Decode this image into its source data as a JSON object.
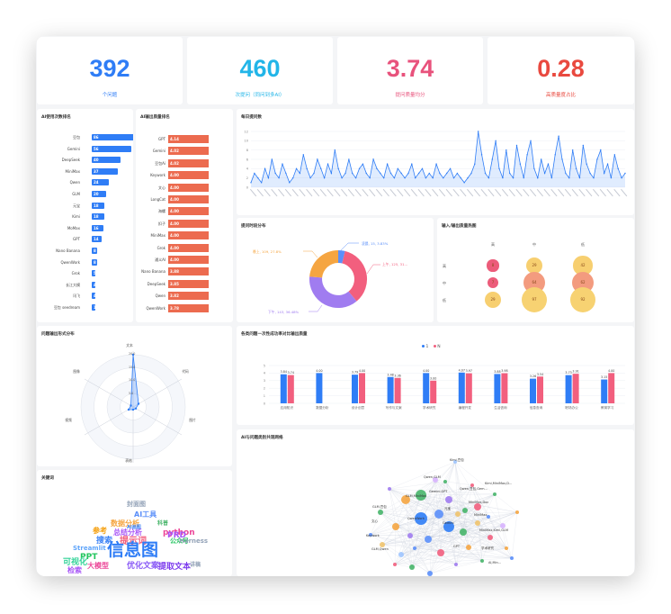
{
  "kpis": [
    {
      "value": "392",
      "label": "个问题",
      "color": "#2f7df6"
    },
    {
      "value": "460",
      "label": "次提问（同问到多AI）",
      "color": "#22b5e8"
    },
    {
      "value": "3.74",
      "label": "提问质量均分",
      "color": "#e8527c"
    },
    {
      "value": "0.28",
      "label": "高质量度占比",
      "color": "#e9493f"
    }
  ],
  "ai_usage": {
    "title": "AI使用次数排名",
    "items": [
      {
        "name": "豆包",
        "value": "86",
        "frac": 1.0
      },
      {
        "name": "Gemini",
        "value": "56",
        "frac": 0.65
      },
      {
        "name": "DeepSeek",
        "value": "40",
        "frac": 0.47
      },
      {
        "name": "MiniMax",
        "value": "37",
        "frac": 0.43
      },
      {
        "name": "Qwen",
        "value": "24",
        "frac": 0.28
      },
      {
        "name": "GLM",
        "value": "20",
        "frac": 0.23
      },
      {
        "name": "元宝",
        "value": "18",
        "frac": 0.21
      },
      {
        "name": "Kimi",
        "value": "18",
        "frac": 0.21
      },
      {
        "name": "MoMax",
        "value": "16",
        "frac": 0.19
      },
      {
        "name": "GPT",
        "value": "14",
        "frac": 0.16
      },
      {
        "name": "Nano Banana",
        "value": "8",
        "frac": 0.09
      },
      {
        "name": "QwenWork",
        "value": "8",
        "frac": 0.09
      },
      {
        "name": "Grok",
        "value": "5",
        "frac": 0.06
      },
      {
        "name": "长江大模",
        "value": "4",
        "frac": 0.05
      },
      {
        "name": "讯飞",
        "value": "4",
        "frac": 0.05
      },
      {
        "name": "豆包 seedream",
        "value": "1",
        "frac": 0.02
      }
    ]
  },
  "ai_quality": {
    "title": "AI输出质量排名",
    "items": [
      {
        "name": "GPT",
        "value": "4.14"
      },
      {
        "name": "Gemini",
        "value": "4.02"
      },
      {
        "name": "豆包Ai",
        "value": "4.02"
      },
      {
        "name": "Keywork",
        "value": "4.00"
      },
      {
        "name": "文心",
        "value": "4.00"
      },
      {
        "name": "LongCat",
        "value": "4.00"
      },
      {
        "name": "海螺",
        "value": "4.00"
      },
      {
        "name": "扣子",
        "value": "4.00"
      },
      {
        "name": "MiniMax",
        "value": "4.00"
      },
      {
        "name": "Grok",
        "value": "4.00"
      },
      {
        "name": "通义AI",
        "value": "4.00"
      },
      {
        "name": "Nano Banana",
        "value": "3.88"
      },
      {
        "name": "DeepSeek",
        "value": "3.85"
      },
      {
        "name": "Qwen",
        "value": "3.82"
      },
      {
        "name": "QwenWork",
        "value": "3.78"
      }
    ]
  },
  "daily": {
    "title": "每日提问数",
    "y_ticks": [
      "12",
      "10",
      "8",
      "6",
      "4",
      "2",
      "0"
    ]
  },
  "period": {
    "title": "提问时段分布",
    "labels": {
      "dawn": "凌晨, 15, 3.83%",
      "morning": "上午, 125, 31...",
      "afternoon": "下午, 143, 36.48%",
      "evening": "晚上, 109, 27.8%"
    }
  },
  "quality_matrix": {
    "title": "输入/输出质量热图",
    "cols": [
      "高",
      "中",
      "低"
    ],
    "rows": [
      "高",
      "中",
      "低"
    ],
    "cells": [
      [
        "8",
        "29",
        "42"
      ],
      [
        "7",
        "64",
        "62"
      ],
      [
        "29",
        "97",
        "92"
      ]
    ]
  },
  "radar": {
    "title": "问题输出形式分布",
    "axes": [
      "文本",
      "代码",
      "图片",
      "表格",
      "视频",
      "图像"
    ],
    "ticks": [
      "20.0",
      "15.0",
      "10.0",
      "5.0"
    ]
  },
  "compare": {
    "title": "各类问题一次性成功率对比输出质量",
    "legend": [
      "1",
      "N"
    ],
    "groups": [
      {
        "name": "应用知识",
        "a": "3.84",
        "b": "3.74"
      },
      {
        "name": "数据分析",
        "a": "4.00",
        "b": ""
      },
      {
        "name": "设计创意",
        "a": "3.79",
        "b": "4.00"
      },
      {
        "name": "写作与文案",
        "a": "3.48",
        "b": "3.36"
      },
      {
        "name": "学术研究",
        "a": "4.00",
        "b": "3.00"
      },
      {
        "name": "编程开发",
        "a": "4.07",
        "b": "3.97"
      },
      {
        "name": "生活咨询",
        "a": "3.88",
        "b": "3.98"
      },
      {
        "name": "信息查询",
        "a": "3.26",
        "b": "3.54"
      },
      {
        "name": "职场办公",
        "a": "3.73",
        "b": "3.91"
      },
      {
        "name": "教育学习",
        "a": "3.15",
        "b": "4.00"
      }
    ]
  },
  "wordcloud": {
    "title": "关键词",
    "words": [
      "封面图",
      "AI工具",
      "数据分析",
      "科普",
      "python",
      "参考",
      "总结分析",
      "PRD",
      "搜索",
      "提示词",
      "公众号",
      "Streamlit",
      "PPT",
      "信息图",
      "大模型",
      "讲稿",
      "可视化",
      "优化文案",
      "提取文本",
      "检索",
      "Harness",
      "AI画图"
    ]
  },
  "network": {
    "title": "AI与问题类别共现网络",
    "labels": [
      "Kimi,豆包",
      "Qwen,GLM",
      "Kimi,MiniMax,D...",
      "Qwen,豆包,Gem...",
      "GLM,MiniMax",
      "Gemini,GPT",
      "MiniMax,Doc",
      "元宝",
      "GLM,豆包",
      "MiniMax",
      "QwenWork",
      "Gemini",
      "文心",
      "MiniMax,Kimi,GLM",
      "Keywork",
      "GLM,Qwen",
      "GPT",
      "学术研究",
      "AI,Min..."
    ]
  }
}
